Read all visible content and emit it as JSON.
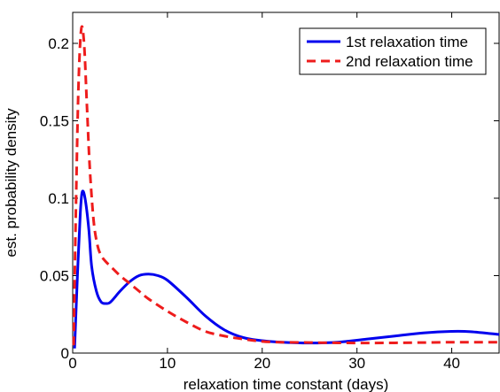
{
  "chart_data": {
    "type": "line",
    "xlabel": "relaxation time constant (days)",
    "ylabel": "est. probability density",
    "xlim": [
      0,
      45
    ],
    "ylim": [
      0,
      0.22
    ],
    "xticks": [
      0,
      10,
      20,
      30,
      40
    ],
    "yticks": [
      0,
      0.05,
      0.1,
      0.15,
      0.2
    ],
    "xtick_labels": [
      "0",
      "10",
      "20",
      "30",
      "40"
    ],
    "ytick_labels": [
      "0",
      "0.05",
      "0.1",
      "0.15",
      "0.2"
    ],
    "grid": false,
    "legend": "top-right",
    "series": [
      {
        "name": "1st relaxation time",
        "color": "#0000ee",
        "style": "solid",
        "x": [
          0.2,
          0.5,
          0.8,
          1.0,
          1.3,
          1.7,
          2.0,
          2.5,
          3.0,
          3.5,
          4.0,
          5.0,
          6.0,
          7.0,
          8.0,
          9.0,
          10.0,
          12.0,
          14.0,
          16.0,
          18.0,
          20.0,
          22.0,
          25.0,
          28.0,
          31.0,
          34.0,
          37.0,
          40.0,
          42.0,
          45.0
        ],
        "y": [
          0.003,
          0.05,
          0.09,
          0.104,
          0.1,
          0.08,
          0.056,
          0.04,
          0.033,
          0.032,
          0.033,
          0.04,
          0.046,
          0.05,
          0.051,
          0.05,
          0.047,
          0.036,
          0.024,
          0.015,
          0.01,
          0.008,
          0.007,
          0.0065,
          0.007,
          0.009,
          0.011,
          0.013,
          0.014,
          0.0138,
          0.012
        ]
      },
      {
        "name": "2nd relaxation time",
        "color": "#ee1c1c",
        "style": "dashed",
        "x": [
          0.1,
          0.3,
          0.6,
          0.9,
          1.2,
          1.5,
          1.8,
          2.2,
          2.6,
          3.0,
          3.5,
          4.0,
          5.0,
          6.0,
          7.0,
          8.0,
          10.0,
          12.0,
          14.0,
          16.0,
          18.0,
          20.0,
          22.0,
          25.0,
          28.0,
          31.0,
          34.0,
          37.0,
          40.0,
          42.0,
          45.0
        ],
        "y": [
          0.005,
          0.08,
          0.17,
          0.209,
          0.2,
          0.16,
          0.12,
          0.086,
          0.07,
          0.063,
          0.059,
          0.056,
          0.05,
          0.045,
          0.04,
          0.035,
          0.027,
          0.02,
          0.014,
          0.011,
          0.009,
          0.0075,
          0.007,
          0.0068,
          0.0066,
          0.0065,
          0.0066,
          0.0068,
          0.007,
          0.007,
          0.007
        ]
      }
    ]
  }
}
